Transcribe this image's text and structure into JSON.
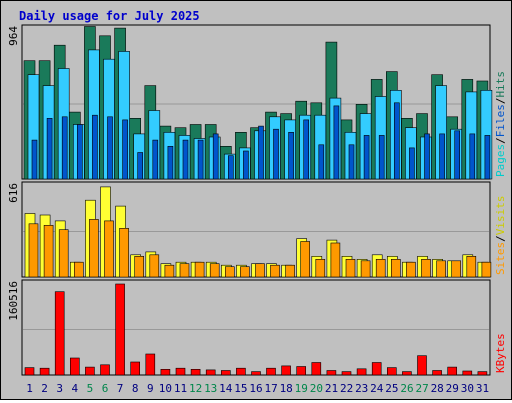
{
  "chart_data": {
    "type": "bar",
    "title": "Daily usage for July 2025",
    "categories": [
      "1",
      "2",
      "3",
      "4",
      "5",
      "6",
      "7",
      "8",
      "9",
      "10",
      "11",
      "12",
      "13",
      "14",
      "15",
      "16",
      "17",
      "18",
      "19",
      "20",
      "21",
      "22",
      "23",
      "24",
      "25",
      "26",
      "27",
      "28",
      "29",
      "30",
      "31"
    ],
    "weekend_days": [
      "5",
      "6",
      "12",
      "13",
      "19",
      "20",
      "26",
      "27"
    ],
    "colors": {
      "hits": "#1a7a5a",
      "files": "#33ccff",
      "pages": "#0055cc",
      "visits": "#ff9900",
      "sites": "#ffff33",
      "kbytes": "#ff0000",
      "title": "#0000cc",
      "weekend": "#00864b",
      "weekday": "#000080"
    },
    "panels": [
      {
        "id": "hits-files-pages",
        "max_label": "964",
        "ylim": [
          0,
          964
        ],
        "legend": [
          {
            "label": "Pages",
            "color": "#00cccc"
          },
          {
            "label": "/",
            "color": "#000000"
          },
          {
            "label": "Files",
            "color": "#0055cc"
          },
          {
            "label": "/",
            "color": "#000000"
          },
          {
            "label": "Hits",
            "color": "#1a7a5a"
          }
        ],
        "series": [
          {
            "name": "Hits",
            "values": [
              760,
              760,
              860,
              430,
              980,
              920,
              970,
              390,
              600,
              340,
              330,
              350,
              350,
              210,
              300,
              330,
              430,
              420,
              500,
              490,
              880,
              380,
              480,
              640,
              690,
              390,
              420,
              670,
              400,
              640,
              630
            ]
          },
          {
            "name": "Files",
            "values": [
              670,
              600,
              710,
              350,
              830,
              770,
              820,
              290,
              440,
              300,
              280,
              260,
              270,
              160,
              200,
              310,
              400,
              380,
              410,
              410,
              520,
              300,
              420,
              530,
              570,
              330,
              270,
              600,
              320,
              560,
              570
            ]
          },
          {
            "name": "Pages",
            "values": [
              250,
              390,
              400,
              350,
              410,
              400,
              380,
              170,
              250,
              210,
              250,
              250,
              290,
              150,
              180,
              340,
              320,
              300,
              380,
              220,
              470,
              220,
              280,
              280,
              490,
              200,
              290,
              290,
              310,
              290,
              280
            ]
          }
        ]
      },
      {
        "id": "visits-sites",
        "max_label": "616",
        "ylim": [
          0,
          616
        ],
        "legend": [
          {
            "label": "Sites",
            "color": "#ff9900"
          },
          {
            "label": "/",
            "color": "#000000"
          },
          {
            "label": "Visits",
            "color": "#cccc00"
          }
        ],
        "series": [
          {
            "name": "Visits",
            "values": [
              430,
              420,
              380,
              100,
              520,
              610,
              480,
              150,
              170,
              90,
              100,
              100,
              100,
              80,
              80,
              90,
              90,
              80,
              260,
              140,
              250,
              140,
              120,
              150,
              140,
              100,
              140,
              120,
              110,
              150,
              100
            ]
          },
          {
            "name": "Sites",
            "values": [
              360,
              350,
              320,
              100,
              390,
              380,
              330,
              140,
              150,
              80,
              90,
              100,
              90,
              70,
              70,
              90,
              80,
              80,
              240,
              120,
              230,
              120,
              110,
              120,
              120,
              100,
              120,
              110,
              110,
              140,
              100
            ]
          }
        ]
      },
      {
        "id": "kbytes",
        "max_label": "160516",
        "ylim": [
          0,
          160516
        ],
        "legend": [
          {
            "label": "KBytes",
            "color": "#ff0000"
          }
        ],
        "series": [
          {
            "name": "KBytes",
            "values": [
              13000,
              12000,
              147000,
              30000,
              14000,
              18000,
              160516,
              23000,
              37000,
              10000,
              12000,
              10000,
              9000,
              8000,
              12000,
              6000,
              12000,
              16000,
              15000,
              22000,
              8000,
              6000,
              11000,
              22000,
              13000,
              6000,
              34000,
              8000,
              14000,
              7000,
              6000
            ]
          }
        ]
      }
    ]
  }
}
